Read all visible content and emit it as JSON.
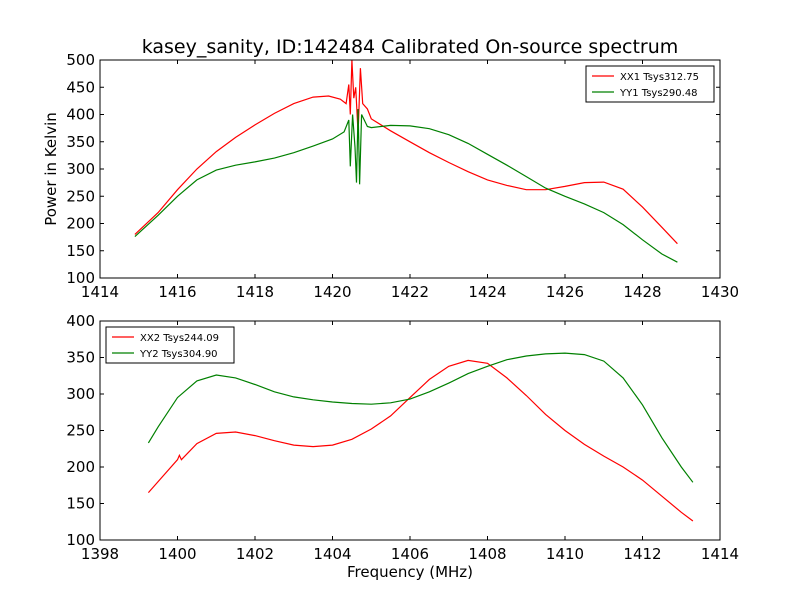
{
  "title": "kasey_sanity, ID:142484 Calibrated On-source spectrum",
  "chart_data": [
    {
      "type": "line",
      "ylabel": "Power in Kelvin",
      "xlabel": "",
      "xlim": [
        1414,
        1430
      ],
      "ylim": [
        100,
        500
      ],
      "xticks": [
        "1414",
        "1416",
        "1418",
        "1420",
        "1422",
        "1424",
        "1426",
        "1428",
        "1430"
      ],
      "yticks": [
        "100",
        "150",
        "200",
        "250",
        "300",
        "350",
        "400",
        "450",
        "500"
      ],
      "legend_position": "top-right",
      "series": [
        {
          "name": "XX1 Tsys312.75",
          "color": "#ff0000",
          "points": [
            [
              1414.9,
              180
            ],
            [
              1415.5,
              220
            ],
            [
              1416.0,
              262
            ],
            [
              1416.5,
              300
            ],
            [
              1417.0,
              332
            ],
            [
              1417.5,
              358
            ],
            [
              1418.0,
              381
            ],
            [
              1418.5,
              402
            ],
            [
              1419.0,
              420
            ],
            [
              1419.5,
              432
            ],
            [
              1419.9,
              434
            ],
            [
              1420.2,
              428
            ],
            [
              1420.35,
              420
            ],
            [
              1420.42,
              455
            ],
            [
              1420.46,
              400
            ],
            [
              1420.5,
              500
            ],
            [
              1420.55,
              430
            ],
            [
              1420.6,
              450
            ],
            [
              1420.66,
              365
            ],
            [
              1420.72,
              485
            ],
            [
              1420.78,
              420
            ],
            [
              1420.9,
              410
            ],
            [
              1421.0,
              392
            ],
            [
              1421.5,
              370
            ],
            [
              1422.0,
              350
            ],
            [
              1422.5,
              330
            ],
            [
              1423.0,
              312
            ],
            [
              1423.5,
              295
            ],
            [
              1424.0,
              280
            ],
            [
              1424.5,
              270
            ],
            [
              1425.0,
              262
            ],
            [
              1425.5,
              262
            ],
            [
              1426.0,
              268
            ],
            [
              1426.5,
              275
            ],
            [
              1427.0,
              276
            ],
            [
              1427.5,
              263
            ],
            [
              1428.0,
              230
            ],
            [
              1428.5,
              193
            ],
            [
              1428.9,
              163
            ]
          ]
        },
        {
          "name": "YY1 Tsys290.48",
          "color": "#008000",
          "points": [
            [
              1414.9,
              176
            ],
            [
              1415.5,
              215
            ],
            [
              1416.0,
              250
            ],
            [
              1416.5,
              280
            ],
            [
              1417.0,
              298
            ],
            [
              1417.5,
              307
            ],
            [
              1418.0,
              313
            ],
            [
              1418.5,
              320
            ],
            [
              1419.0,
              330
            ],
            [
              1419.5,
              342
            ],
            [
              1420.0,
              355
            ],
            [
              1420.3,
              368
            ],
            [
              1420.42,
              390
            ],
            [
              1420.46,
              305
            ],
            [
              1420.52,
              400
            ],
            [
              1420.58,
              340
            ],
            [
              1420.62,
              275
            ],
            [
              1420.66,
              410
            ],
            [
              1420.7,
              272
            ],
            [
              1420.75,
              400
            ],
            [
              1420.9,
              378
            ],
            [
              1421.0,
              376
            ],
            [
              1421.5,
              380
            ],
            [
              1422.0,
              379
            ],
            [
              1422.5,
              374
            ],
            [
              1423.0,
              363
            ],
            [
              1423.5,
              347
            ],
            [
              1424.0,
              327
            ],
            [
              1424.5,
              307
            ],
            [
              1425.0,
              286
            ],
            [
              1425.5,
              265
            ],
            [
              1426.0,
              250
            ],
            [
              1426.5,
              236
            ],
            [
              1427.0,
              220
            ],
            [
              1427.5,
              198
            ],
            [
              1428.0,
              170
            ],
            [
              1428.5,
              144
            ],
            [
              1428.9,
              129
            ]
          ]
        }
      ]
    },
    {
      "type": "line",
      "ylabel": "",
      "xlabel": "Frequency (MHz)",
      "xlim": [
        1398,
        1414
      ],
      "ylim": [
        100,
        400
      ],
      "xticks": [
        "1398",
        "1400",
        "1402",
        "1404",
        "1406",
        "1408",
        "1410",
        "1412",
        "1414"
      ],
      "yticks": [
        "100",
        "150",
        "200",
        "250",
        "300",
        "350",
        "400"
      ],
      "legend_position": "top-left",
      "series": [
        {
          "name": "XX2 Tsys244.09",
          "color": "#ff0000",
          "points": [
            [
              1399.25,
              165
            ],
            [
              1399.5,
              180
            ],
            [
              1400.0,
              210
            ],
            [
              1400.05,
              216
            ],
            [
              1400.1,
              210
            ],
            [
              1400.5,
              232
            ],
            [
              1401.0,
              246
            ],
            [
              1401.5,
              248
            ],
            [
              1402.0,
              243
            ],
            [
              1402.5,
              236
            ],
            [
              1403.0,
              230
            ],
            [
              1403.5,
              228
            ],
            [
              1404.0,
              230
            ],
            [
              1404.5,
              238
            ],
            [
              1405.0,
              252
            ],
            [
              1405.5,
              270
            ],
            [
              1406.0,
              295
            ],
            [
              1406.5,
              320
            ],
            [
              1407.0,
              338
            ],
            [
              1407.5,
              346
            ],
            [
              1408.0,
              342
            ],
            [
              1408.5,
              322
            ],
            [
              1409.0,
              298
            ],
            [
              1409.5,
              272
            ],
            [
              1410.0,
              250
            ],
            [
              1410.5,
              231
            ],
            [
              1411.0,
              215
            ],
            [
              1411.5,
              200
            ],
            [
              1412.0,
              182
            ],
            [
              1412.5,
              160
            ],
            [
              1413.0,
              138
            ],
            [
              1413.3,
              126
            ]
          ]
        },
        {
          "name": "YY2 Tsys304.90",
          "color": "#008000",
          "points": [
            [
              1399.25,
              233
            ],
            [
              1399.5,
              255
            ],
            [
              1400.0,
              295
            ],
            [
              1400.5,
              318
            ],
            [
              1401.0,
              326
            ],
            [
              1401.5,
              322
            ],
            [
              1402.0,
              313
            ],
            [
              1402.5,
              303
            ],
            [
              1403.0,
              296
            ],
            [
              1403.5,
              292
            ],
            [
              1404.0,
              289
            ],
            [
              1404.5,
              287
            ],
            [
              1405.0,
              286
            ],
            [
              1405.5,
              288
            ],
            [
              1406.0,
              293
            ],
            [
              1406.5,
              303
            ],
            [
              1407.0,
              315
            ],
            [
              1407.5,
              328
            ],
            [
              1408.0,
              338
            ],
            [
              1408.5,
              347
            ],
            [
              1409.0,
              352
            ],
            [
              1409.5,
              355
            ],
            [
              1410.0,
              356
            ],
            [
              1410.5,
              354
            ],
            [
              1411.0,
              345
            ],
            [
              1411.5,
              322
            ],
            [
              1412.0,
              285
            ],
            [
              1412.5,
              240
            ],
            [
              1413.0,
              200
            ],
            [
              1413.3,
              179
            ]
          ]
        }
      ]
    }
  ]
}
